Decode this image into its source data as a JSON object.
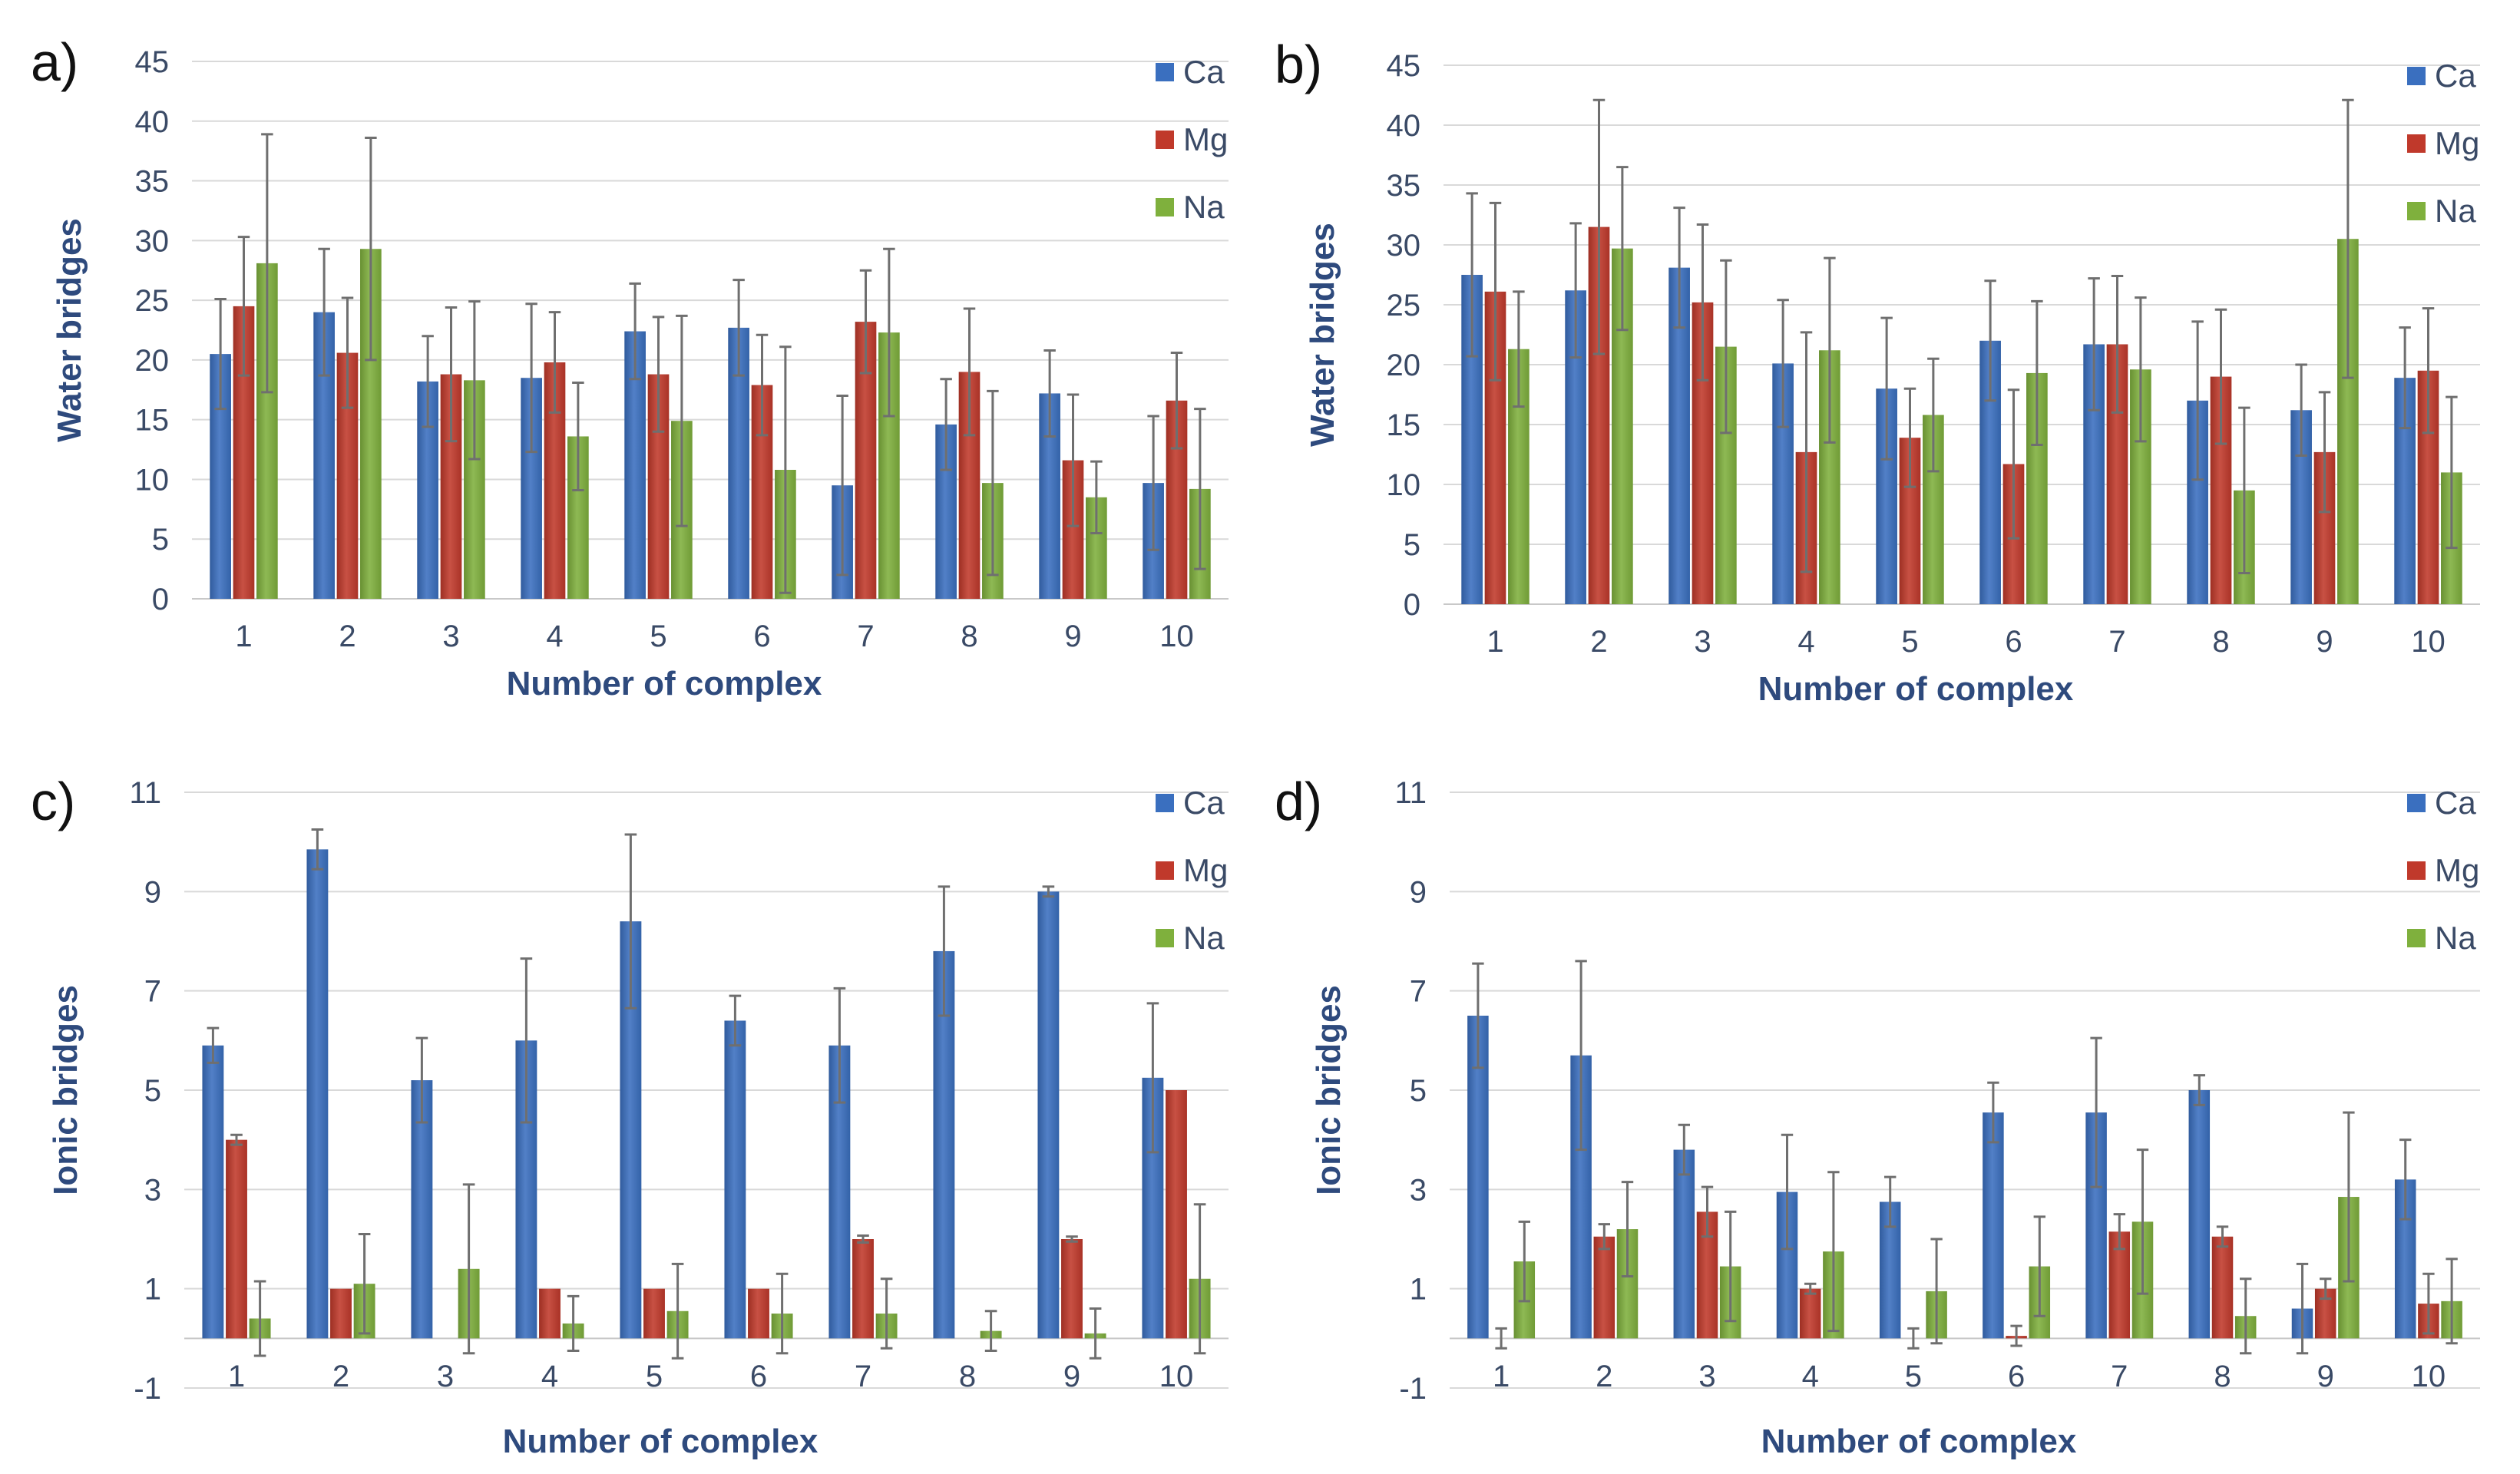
{
  "figure": {
    "panel_labels": [
      "a)",
      "b)",
      "c)",
      "d)"
    ]
  },
  "colors": {
    "Ca": "#3a6fbf",
    "Mg": "#c0392b",
    "Na": "#7fb03d",
    "error": "#6f6f6f"
  },
  "chart_data": [
    {
      "panel": "a)",
      "type": "bar",
      "xlabel": "Number of complex",
      "ylabel": "Water bridges",
      "categories": [
        "1",
        "2",
        "3",
        "4",
        "5",
        "6",
        "7",
        "8",
        "9",
        "10"
      ],
      "ylim": [
        0,
        45
      ],
      "yticks": [
        0,
        5,
        10,
        15,
        20,
        25,
        30,
        35,
        40,
        45
      ],
      "legend": [
        "Ca",
        "Mg",
        "Na"
      ],
      "legend_position": "top-right",
      "grid": true,
      "series": [
        {
          "name": "Ca",
          "values": [
            20.5,
            24,
            18.2,
            18.5,
            22.4,
            22.7,
            9.5,
            14.6,
            17.2,
            9.7
          ],
          "errors": [
            4.6,
            5.3,
            3.8,
            6.2,
            4.0,
            4.0,
            7.5,
            3.8,
            3.6,
            5.6
          ]
        },
        {
          "name": "Mg",
          "values": [
            24.5,
            20.6,
            18.8,
            19.8,
            18.8,
            17.9,
            23.2,
            19.0,
            11.6,
            16.6
          ],
          "errors": [
            5.8,
            4.6,
            5.6,
            4.2,
            4.8,
            4.2,
            4.3,
            5.3,
            5.5,
            4.0
          ]
        },
        {
          "name": "Na",
          "values": [
            28.1,
            29.3,
            18.3,
            13.6,
            14.9,
            10.8,
            22.3,
            9.7,
            8.5,
            9.2
          ],
          "errors": [
            10.8,
            9.3,
            6.6,
            4.5,
            8.8,
            10.3,
            7.0,
            7.7,
            3.0,
            6.7
          ]
        }
      ]
    },
    {
      "panel": "b)",
      "type": "bar",
      "xlabel": "Number of complex",
      "ylabel": "Water bridges",
      "categories": [
        "1",
        "2",
        "3",
        "4",
        "5",
        "6",
        "7",
        "8",
        "9",
        "10"
      ],
      "ylim": [
        0,
        45
      ],
      "yticks": [
        0,
        5,
        10,
        15,
        20,
        25,
        30,
        35,
        40,
        45
      ],
      "legend": [
        "Ca",
        "Mg",
        "Na"
      ],
      "legend_position": "top-right",
      "grid": true,
      "series": [
        {
          "name": "Ca",
          "values": [
            27.5,
            26.2,
            28.1,
            20.1,
            18.0,
            22.0,
            21.7,
            17.0,
            16.2,
            18.9
          ],
          "errors": [
            6.8,
            5.6,
            5.0,
            5.3,
            5.9,
            5.0,
            5.5,
            6.6,
            3.8,
            4.2
          ]
        },
        {
          "name": "Mg",
          "values": [
            26.1,
            31.5,
            25.2,
            12.7,
            13.9,
            11.7,
            21.7,
            19.0,
            12.7,
            19.5
          ],
          "errors": [
            7.4,
            10.6,
            6.5,
            10.0,
            4.1,
            6.2,
            5.7,
            5.6,
            5.0,
            5.2
          ]
        },
        {
          "name": "Na",
          "values": [
            21.3,
            29.7,
            21.5,
            21.2,
            15.8,
            19.3,
            19.6,
            9.5,
            30.5,
            11.0
          ],
          "errors": [
            4.8,
            6.8,
            7.2,
            7.7,
            4.7,
            6.0,
            6.0,
            6.9,
            11.6,
            6.3
          ]
        }
      ]
    },
    {
      "panel": "c)",
      "type": "bar",
      "xlabel": "Number of complex",
      "ylabel": "Ionic bridges",
      "categories": [
        "1",
        "2",
        "3",
        "4",
        "5",
        "6",
        "7",
        "8",
        "9",
        "10"
      ],
      "ylim": [
        -1,
        11
      ],
      "yticks": [
        -1,
        1,
        3,
        5,
        7,
        9,
        11
      ],
      "legend": [
        "Ca",
        "Mg",
        "Na"
      ],
      "legend_position": "top-right",
      "grid": true,
      "series": [
        {
          "name": "Ca",
          "values": [
            5.9,
            9.85,
            5.2,
            6.0,
            8.4,
            6.4,
            5.9,
            7.8,
            9.0,
            5.25
          ],
          "errors": [
            0.35,
            0.4,
            0.85,
            1.65,
            1.75,
            0.5,
            1.15,
            1.3,
            0.1,
            1.5
          ]
        },
        {
          "name": "Mg",
          "values": [
            4.0,
            1.0,
            0,
            1.0,
            1.0,
            1.0,
            2.0,
            0,
            2.0,
            5.0
          ],
          "errors": [
            0.1,
            0,
            0,
            0,
            0,
            0,
            0.07,
            0,
            0.05,
            0
          ]
        },
        {
          "name": "Na",
          "values": [
            0.4,
            1.1,
            1.4,
            0.3,
            0.55,
            0.5,
            0.5,
            0.15,
            0.1,
            1.2
          ],
          "errors": [
            0.75,
            1.0,
            1.7,
            0.55,
            0.95,
            0.8,
            0.7,
            0.4,
            0.5,
            1.5
          ]
        }
      ]
    },
    {
      "panel": "d)",
      "type": "bar",
      "xlabel": "Number of complex",
      "ylabel": "Ionic bridges",
      "categories": [
        "1",
        "2",
        "3",
        "4",
        "5",
        "6",
        "7",
        "8",
        "9",
        "10"
      ],
      "ylim": [
        -1,
        11
      ],
      "yticks": [
        -1,
        1,
        3,
        5,
        7,
        9,
        11
      ],
      "legend": [
        "Ca",
        "Mg",
        "Na"
      ],
      "legend_position": "top-right",
      "grid": true,
      "series": [
        {
          "name": "Ca",
          "values": [
            6.5,
            5.7,
            3.8,
            2.95,
            2.75,
            4.55,
            4.55,
            5.0,
            0.6,
            3.2
          ],
          "errors": [
            1.05,
            1.9,
            0.5,
            1.15,
            0.5,
            0.6,
            1.5,
            0.3,
            0.9,
            0.8
          ]
        },
        {
          "name": "Mg",
          "values": [
            0,
            2.05,
            2.55,
            1.0,
            0,
            0.05,
            2.15,
            2.05,
            1.0,
            0.7
          ],
          "errors": [
            0.2,
            0.25,
            0.5,
            0.1,
            0.2,
            0.2,
            0.35,
            0.2,
            0.2,
            0.6
          ]
        },
        {
          "name": "Na",
          "values": [
            1.55,
            2.2,
            1.45,
            1.75,
            0.95,
            1.45,
            2.35,
            0.45,
            2.85,
            0.75
          ],
          "errors": [
            0.8,
            0.95,
            1.1,
            1.6,
            1.05,
            1.0,
            1.45,
            0.75,
            1.7,
            0.85
          ]
        }
      ]
    }
  ]
}
